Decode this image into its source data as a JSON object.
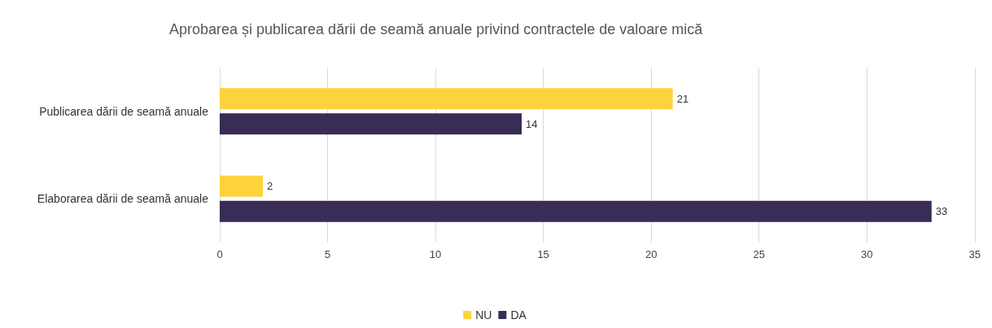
{
  "chart_data": {
    "type": "bar",
    "orientation": "horizontal",
    "title": "Aprobarea și publicarea dării de seamă anuale privind contractele de valoare mică",
    "categories": [
      "Publicarea dării de seamă anuale",
      "Elaborarea dării de seamă anuale"
    ],
    "series": [
      {
        "name": "NU",
        "color": "#fdd23c",
        "values": [
          21,
          2
        ]
      },
      {
        "name": "DA",
        "color": "#392c57",
        "values": [
          14,
          33
        ]
      }
    ],
    "xlim": [
      0,
      35
    ],
    "xticks": [
      0,
      5,
      10,
      15,
      20,
      25,
      30,
      35
    ],
    "grid": "x",
    "legend": "bottom",
    "data_labels": true
  }
}
